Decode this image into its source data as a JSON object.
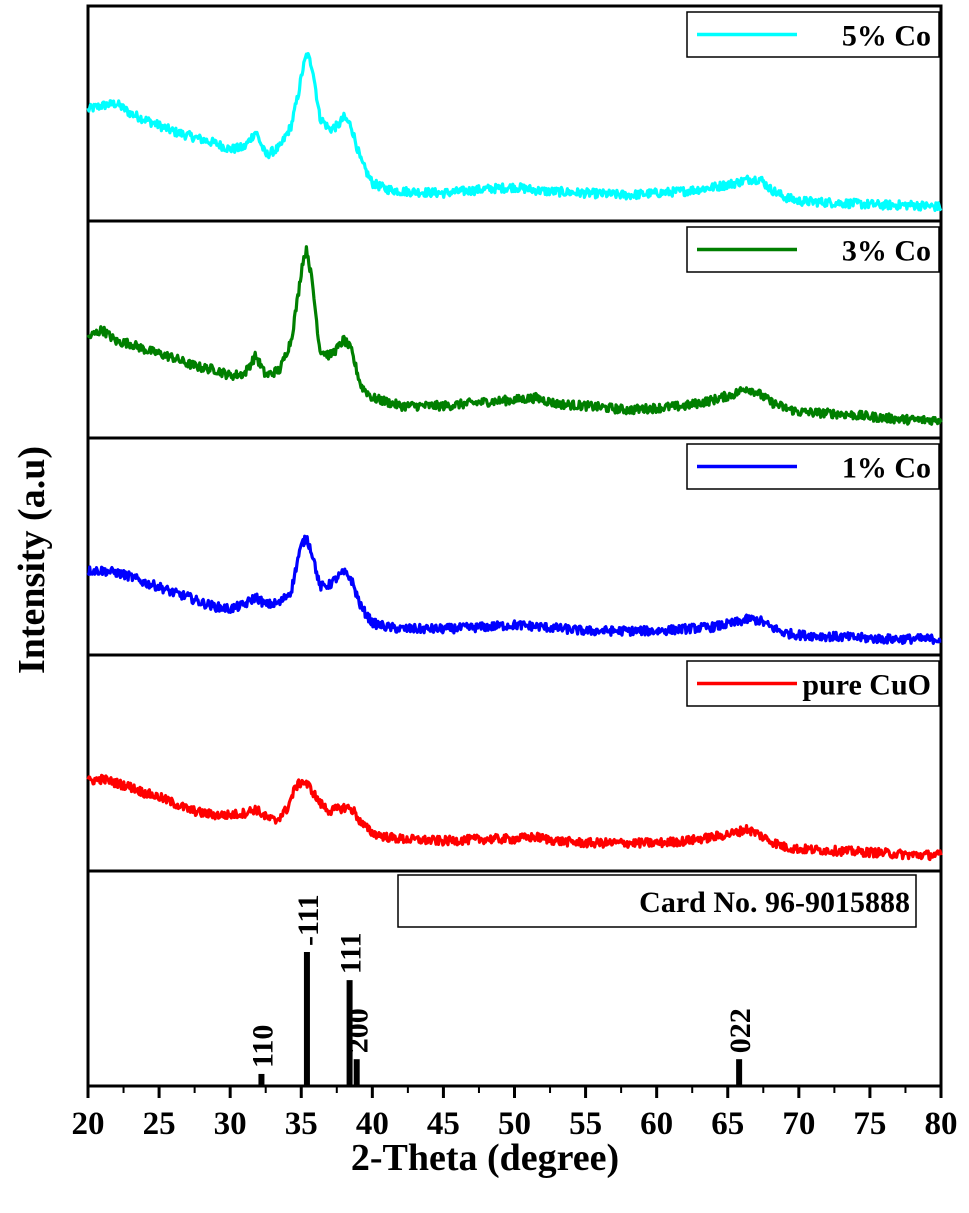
{
  "chart_data": {
    "type": "line",
    "xlabel": "2-Theta (degree)",
    "ylabel": "Intensity (a.u)",
    "xlim": [
      20,
      80
    ],
    "xticks": [
      "20",
      "25",
      "30",
      "35",
      "40",
      "45",
      "50",
      "55",
      "60",
      "65",
      "70",
      "75",
      "80"
    ],
    "yticks_shown": false,
    "layout": "stacked panels",
    "series": [
      {
        "name": "5% Co",
        "color": "#00ffff",
        "legend_position": "top-right",
        "points": [
          [
            20,
            0.52
          ],
          [
            21,
            0.54
          ],
          [
            22,
            0.55
          ],
          [
            23,
            0.5
          ],
          [
            24,
            0.47
          ],
          [
            25,
            0.44
          ],
          [
            26,
            0.41
          ],
          [
            27,
            0.39
          ],
          [
            28,
            0.37
          ],
          [
            29,
            0.35
          ],
          [
            30,
            0.32
          ],
          [
            31,
            0.33
          ],
          [
            31.8,
            0.41
          ],
          [
            32.5,
            0.29
          ],
          [
            33.5,
            0.33
          ],
          [
            34.3,
            0.44
          ],
          [
            34.8,
            0.6
          ],
          [
            35.1,
            0.72
          ],
          [
            35.4,
            0.8
          ],
          [
            35.8,
            0.73
          ],
          [
            36.3,
            0.48
          ],
          [
            37,
            0.42
          ],
          [
            37.6,
            0.44
          ],
          [
            38,
            0.48
          ],
          [
            38.5,
            0.44
          ],
          [
            39.2,
            0.26
          ],
          [
            40,
            0.15
          ],
          [
            41,
            0.12
          ],
          [
            42,
            0.11
          ],
          [
            45,
            0.1
          ],
          [
            48,
            0.12
          ],
          [
            50,
            0.13
          ],
          [
            52,
            0.11
          ],
          [
            55,
            0.1
          ],
          [
            58,
            0.09
          ],
          [
            60,
            0.1
          ],
          [
            62,
            0.11
          ],
          [
            64,
            0.13
          ],
          [
            65.5,
            0.15
          ],
          [
            66.5,
            0.17
          ],
          [
            67.3,
            0.17
          ],
          [
            68,
            0.12
          ],
          [
            69,
            0.08
          ],
          [
            70,
            0.06
          ],
          [
            73,
            0.05
          ],
          [
            76,
            0.04
          ],
          [
            78,
            0.04
          ],
          [
            80,
            0.03
          ]
        ]
      },
      {
        "name": "3% Co",
        "color": "#007f00",
        "legend_position": "top-right",
        "points": [
          [
            20,
            0.46
          ],
          [
            21,
            0.5
          ],
          [
            22,
            0.44
          ],
          [
            23,
            0.43
          ],
          [
            24,
            0.4
          ],
          [
            25,
            0.38
          ],
          [
            26,
            0.36
          ],
          [
            27,
            0.33
          ],
          [
            28,
            0.31
          ],
          [
            29,
            0.3
          ],
          [
            30,
            0.27
          ],
          [
            31,
            0.28
          ],
          [
            31.8,
            0.37
          ],
          [
            32.5,
            0.27
          ],
          [
            33.5,
            0.3
          ],
          [
            34.3,
            0.45
          ],
          [
            34.8,
            0.68
          ],
          [
            35.1,
            0.84
          ],
          [
            35.4,
            0.9
          ],
          [
            35.8,
            0.72
          ],
          [
            36.3,
            0.4
          ],
          [
            37,
            0.37
          ],
          [
            37.6,
            0.41
          ],
          [
            38,
            0.45
          ],
          [
            38.5,
            0.4
          ],
          [
            39.2,
            0.22
          ],
          [
            40,
            0.16
          ],
          [
            41,
            0.14
          ],
          [
            42,
            0.12
          ],
          [
            45,
            0.12
          ],
          [
            48,
            0.14
          ],
          [
            50,
            0.15
          ],
          [
            51.5,
            0.16
          ],
          [
            53,
            0.13
          ],
          [
            55,
            0.12
          ],
          [
            58,
            0.1
          ],
          [
            60,
            0.11
          ],
          [
            62,
            0.12
          ],
          [
            64,
            0.15
          ],
          [
            65.5,
            0.18
          ],
          [
            66.3,
            0.21
          ],
          [
            67,
            0.19
          ],
          [
            68,
            0.14
          ],
          [
            69,
            0.11
          ],
          [
            70,
            0.09
          ],
          [
            73,
            0.08
          ],
          [
            76,
            0.06
          ],
          [
            78,
            0.05
          ],
          [
            80,
            0.05
          ]
        ]
      },
      {
        "name": "1% Co",
        "color": "#0000ff",
        "legend_position": "top-right",
        "points": [
          [
            20,
            0.38
          ],
          [
            21,
            0.38
          ],
          [
            22,
            0.37
          ],
          [
            23,
            0.35
          ],
          [
            24,
            0.32
          ],
          [
            25,
            0.3
          ],
          [
            26,
            0.27
          ],
          [
            27,
            0.25
          ],
          [
            28,
            0.22
          ],
          [
            29,
            0.2
          ],
          [
            30,
            0.19
          ],
          [
            31,
            0.21
          ],
          [
            31.8,
            0.25
          ],
          [
            32.5,
            0.21
          ],
          [
            33.5,
            0.22
          ],
          [
            34.3,
            0.28
          ],
          [
            34.8,
            0.45
          ],
          [
            35.1,
            0.52
          ],
          [
            35.4,
            0.54
          ],
          [
            35.8,
            0.46
          ],
          [
            36.3,
            0.3
          ],
          [
            37,
            0.31
          ],
          [
            37.6,
            0.35
          ],
          [
            38,
            0.37
          ],
          [
            38.5,
            0.34
          ],
          [
            39.2,
            0.2
          ],
          [
            40,
            0.12
          ],
          [
            41,
            0.1
          ],
          [
            42,
            0.09
          ],
          [
            45,
            0.09
          ],
          [
            48,
            0.1
          ],
          [
            50,
            0.11
          ],
          [
            52,
            0.1
          ],
          [
            55,
            0.08
          ],
          [
            58,
            0.08
          ],
          [
            60,
            0.08
          ],
          [
            62,
            0.09
          ],
          [
            64,
            0.1
          ],
          [
            65.5,
            0.12
          ],
          [
            66.5,
            0.14
          ],
          [
            67.3,
            0.13
          ],
          [
            68,
            0.1
          ],
          [
            69,
            0.07
          ],
          [
            70,
            0.06
          ],
          [
            73,
            0.05
          ],
          [
            76,
            0.04
          ],
          [
            78,
            0.04
          ],
          [
            80,
            0.04
          ]
        ]
      },
      {
        "name": "pure CuO",
        "color": "#ff0000",
        "legend_position": "top-right",
        "points": [
          [
            20,
            0.41
          ],
          [
            21,
            0.42
          ],
          [
            22,
            0.4
          ],
          [
            23,
            0.38
          ],
          [
            24,
            0.35
          ],
          [
            25,
            0.33
          ],
          [
            26,
            0.3
          ],
          [
            27,
            0.27
          ],
          [
            28,
            0.25
          ],
          [
            29,
            0.24
          ],
          [
            30,
            0.24
          ],
          [
            31,
            0.25
          ],
          [
            31.8,
            0.27
          ],
          [
            32.5,
            0.23
          ],
          [
            33.2,
            0.21
          ],
          [
            34,
            0.27
          ],
          [
            34.6,
            0.38
          ],
          [
            35.1,
            0.41
          ],
          [
            35.6,
            0.38
          ],
          [
            36.3,
            0.3
          ],
          [
            37,
            0.26
          ],
          [
            37.6,
            0.27
          ],
          [
            38.2,
            0.28
          ],
          [
            38.7,
            0.26
          ],
          [
            39.2,
            0.2
          ],
          [
            40,
            0.15
          ],
          [
            41,
            0.13
          ],
          [
            42,
            0.12
          ],
          [
            45,
            0.11
          ],
          [
            48,
            0.12
          ],
          [
            50,
            0.12
          ],
          [
            51.5,
            0.13
          ],
          [
            53,
            0.11
          ],
          [
            55,
            0.1
          ],
          [
            58,
            0.1
          ],
          [
            60,
            0.1
          ],
          [
            62,
            0.11
          ],
          [
            64,
            0.13
          ],
          [
            65.5,
            0.15
          ],
          [
            66.3,
            0.17
          ],
          [
            67,
            0.15
          ],
          [
            68,
            0.11
          ],
          [
            69,
            0.08
          ],
          [
            70,
            0.07
          ],
          [
            73,
            0.06
          ],
          [
            76,
            0.05
          ],
          [
            78,
            0.04
          ],
          [
            80,
            0.04
          ]
        ]
      }
    ],
    "reference": {
      "legend": "Card No. 96-9015888",
      "peaks": [
        {
          "x": 32.2,
          "intensity": 0.09,
          "label": "110"
        },
        {
          "x": 35.4,
          "intensity": 1.0,
          "label": "-111"
        },
        {
          "x": 38.4,
          "intensity": 0.79,
          "label": "111"
        },
        {
          "x": 38.9,
          "intensity": 0.2,
          "label": "200"
        },
        {
          "x": 65.8,
          "intensity": 0.2,
          "label": "022"
        }
      ]
    }
  },
  "colors": {
    "axis": "#000000",
    "background": "#ffffff",
    "reference_bars": "#000000"
  }
}
